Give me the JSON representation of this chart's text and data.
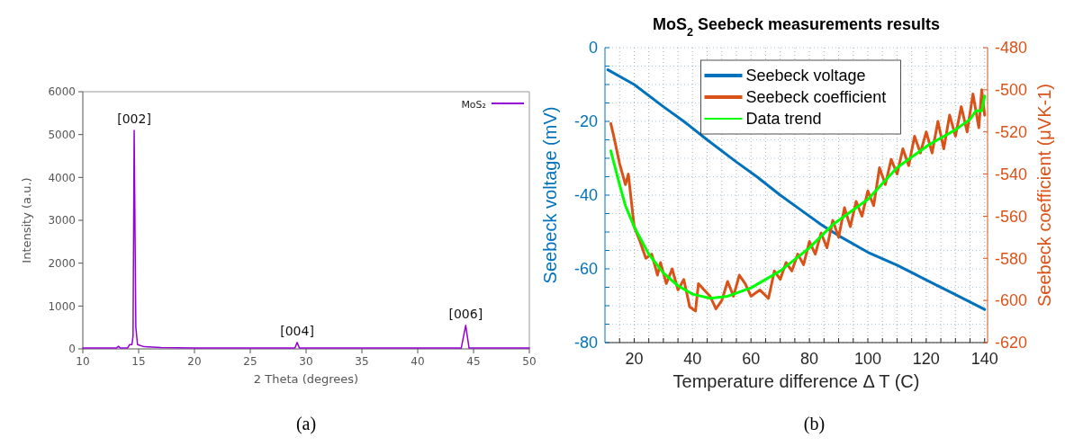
{
  "chart_data": [
    {
      "type": "line",
      "xlabel": "2 Theta (degrees)",
      "ylabel": "Intensity (a.u.)",
      "xlim": [
        10,
        50
      ],
      "xticks": [
        10,
        15,
        20,
        25,
        30,
        35,
        40,
        45,
        50
      ],
      "ylim": [
        0,
        6000
      ],
      "yticks": [
        0,
        1000,
        2000,
        3000,
        4000,
        5000,
        6000
      ],
      "legend": "top right",
      "series": [
        {
          "name": "MoS₂",
          "color": "#9400d3",
          "x": [
            10,
            13,
            13.2,
            13.35,
            14,
            14.2,
            14.4,
            14.5,
            14.6,
            14.75,
            14.9,
            15.5,
            17,
            20,
            25,
            29,
            29.2,
            29.4,
            35,
            40,
            43.9,
            44.3,
            44.6,
            50
          ],
          "values": [
            20,
            20,
            60,
            20,
            20,
            100,
            100,
            300,
            5100,
            500,
            100,
            50,
            30,
            20,
            20,
            20,
            150,
            20,
            20,
            20,
            20,
            550,
            20,
            20
          ]
        }
      ],
      "annotations": [
        {
          "text": "[002]",
          "x": 14.6,
          "y": 5100
        },
        {
          "text": "[004]",
          "x": 29.2,
          "y": 150
        },
        {
          "text": "[006]",
          "x": 44.3,
          "y": 550
        },
        "(a)"
      ]
    },
    {
      "type": "line",
      "title": "MoS$_{2}$ Seebeck measurements results",
      "xlabel": "Temperature difference Δ T (C)",
      "ylabel": "Seebeck voltage (mV)",
      "y2label": "Seebeck coefficient (μVK-1)",
      "xlim": [
        10,
        141
      ],
      "xticks": [
        {
          "value": 15,
          "label": null
        },
        20,
        {
          "value": 25,
          "label": null
        },
        {
          "value": 30,
          "label": null
        },
        {
          "value": 35,
          "label": null
        },
        40,
        {
          "value": 45,
          "label": null
        },
        {
          "value": 50,
          "label": null
        },
        {
          "value": 55,
          "label": null
        },
        60,
        {
          "value": 65,
          "label": null
        },
        {
          "value": 70,
          "label": null
        },
        {
          "value": 75,
          "label": null
        },
        80,
        {
          "value": 85,
          "label": null
        },
        {
          "value": 90,
          "label": null
        },
        {
          "value": 95,
          "label": null
        },
        100,
        {
          "value": 105,
          "label": null
        },
        {
          "value": 110,
          "label": null
        },
        {
          "value": 115,
          "label": null
        },
        120,
        {
          "value": 125,
          "label": null
        },
        {
          "value": 130,
          "label": null
        },
        {
          "value": 135,
          "label": null
        },
        140
      ],
      "ylim": [
        -80,
        0
      ],
      "yticks": [
        -80,
        {
          "value": -75,
          "label": null
        },
        {
          "value": -70,
          "label": null
        },
        {
          "value": -65,
          "label": null
        },
        -60,
        {
          "value": -55,
          "label": null
        },
        {
          "value": -50,
          "label": null
        },
        {
          "value": -45,
          "label": null
        },
        -40,
        {
          "value": -35,
          "label": null
        },
        {
          "value": -30,
          "label": null
        },
        {
          "value": -25,
          "label": null
        },
        -20,
        {
          "value": -15,
          "label": null
        },
        {
          "value": -10,
          "label": null
        },
        {
          "value": -5,
          "label": null
        },
        0
      ],
      "y2lim": [
        -620,
        -480
      ],
      "y2ticks": [
        -620,
        -600,
        -580,
        -560,
        -540,
        -520,
        -500,
        -480
      ],
      "grid": true,
      "legend": "top",
      "series": [
        {
          "name": "Seebeck voltage",
          "color": "#0072bd",
          "x": [
            11,
            20,
            30,
            37,
            45,
            55,
            62,
            70,
            77,
            84,
            90,
            100,
            110,
            120,
            130,
            140
          ],
          "values": [
            -6,
            -10,
            -16,
            -20,
            -25,
            -31,
            -35,
            -40,
            -44,
            -48,
            -51,
            -55.5,
            -59,
            -63,
            -67,
            -71
          ]
        },
        {
          "name": "Seebeck coefficient",
          "color": "#d95319",
          "axis": "y2",
          "x": [
            12,
            13,
            15,
            17,
            18,
            20,
            22,
            24,
            26,
            28,
            29,
            31,
            33,
            35,
            37,
            39,
            41,
            42,
            44,
            46,
            48,
            50,
            52,
            54,
            56,
            58,
            60,
            63,
            66,
            68,
            70,
            72,
            74,
            76,
            78,
            80,
            82,
            84,
            86,
            88,
            90,
            92,
            94,
            96,
            98,
            100,
            102,
            104,
            106,
            108,
            110,
            112,
            114,
            116,
            118,
            120,
            122,
            124,
            126,
            128,
            130,
            132,
            134,
            136,
            138,
            139,
            140
          ],
          "values": [
            -516,
            -522,
            -535,
            -545,
            -540,
            -565,
            -572,
            -580,
            -578,
            -588,
            -582,
            -592,
            -585,
            -595,
            -590,
            -603,
            -605,
            -592,
            -595,
            -598,
            -604,
            -600,
            -591,
            -598,
            -588,
            -592,
            -598,
            -595,
            -599,
            -586,
            -590,
            -582,
            -586,
            -578,
            -583,
            -572,
            -578,
            -568,
            -575,
            -562,
            -570,
            -556,
            -565,
            -553,
            -560,
            -548,
            -555,
            -537,
            -545,
            -533,
            -540,
            -528,
            -536,
            -522,
            -530,
            -520,
            -530,
            -515,
            -528,
            -512,
            -522,
            -508,
            -520,
            -502,
            -518,
            -500,
            -512
          ]
        },
        {
          "name": "Data trend",
          "color": "#00ff00",
          "axis": "y2",
          "x": [
            12,
            15,
            17,
            20,
            25,
            30,
            35,
            40,
            46,
            52,
            60,
            70,
            80,
            88,
            94,
            100,
            110,
            121,
            130,
            135,
            137,
            139,
            140
          ],
          "values": [
            -529,
            -545,
            -555,
            -565,
            -578,
            -587,
            -593,
            -597,
            -599,
            -598,
            -594,
            -586,
            -575,
            -564,
            -558,
            -552,
            -537,
            -526,
            -519,
            -514,
            -510,
            -510,
            -503
          ]
        }
      ],
      "annotations": [
        "(b)"
      ]
    }
  ]
}
